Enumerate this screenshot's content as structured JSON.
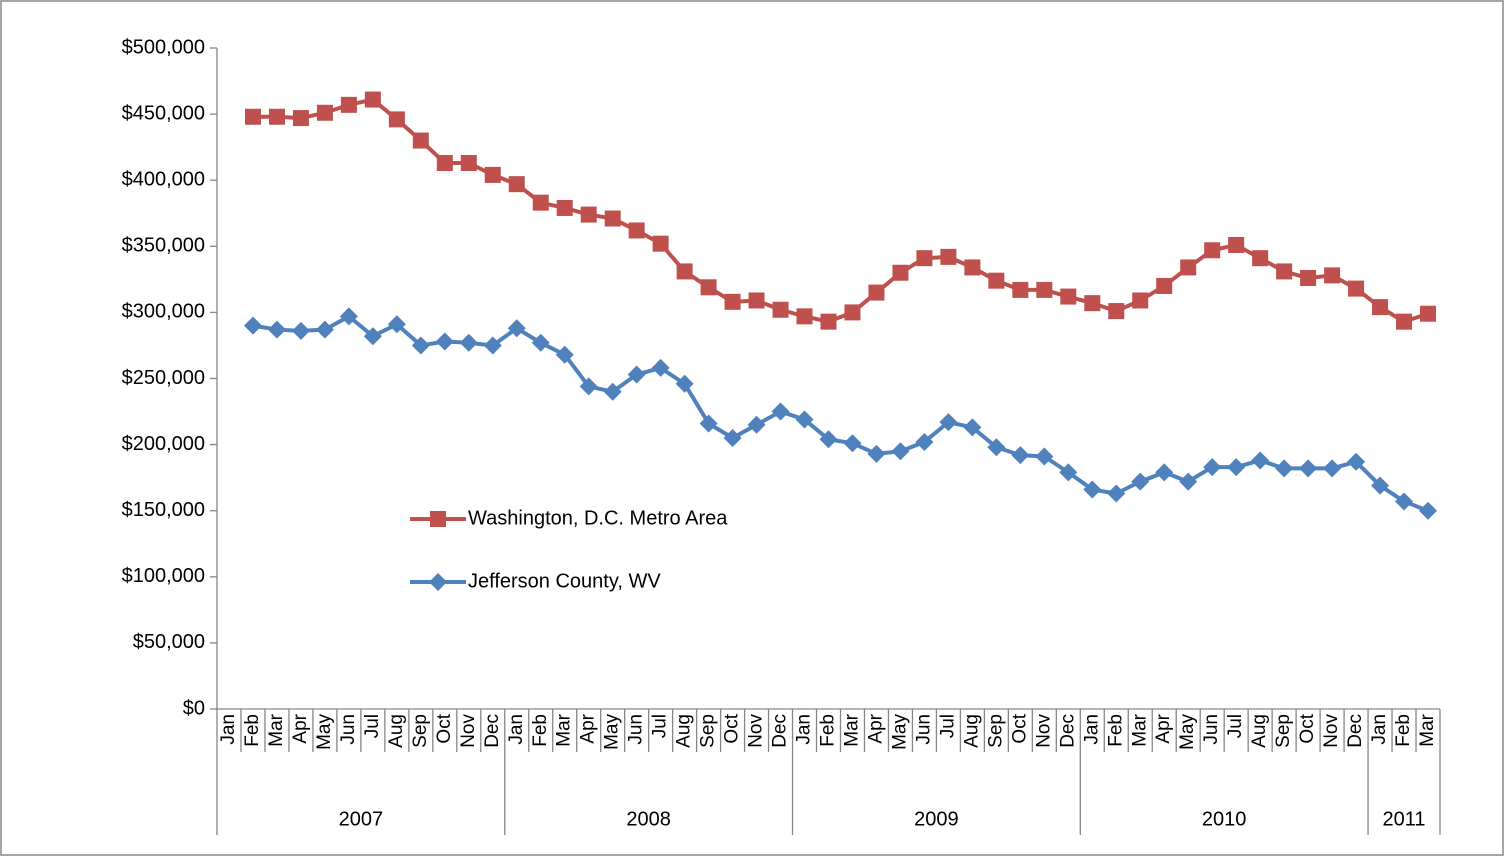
{
  "chart_data": {
    "type": "line",
    "categories": [
      "Jan",
      "Feb",
      "Mar",
      "Apr",
      "May",
      "Jun",
      "Jul",
      "Aug",
      "Sep",
      "Oct",
      "Nov",
      "Dec",
      "Jan",
      "Feb",
      "Mar",
      "Apr",
      "May",
      "Jun",
      "Jul",
      "Aug",
      "Sep",
      "Oct",
      "Nov",
      "Dec",
      "Jan",
      "Feb",
      "Mar",
      "Apr",
      "May",
      "Jun",
      "Jul",
      "Aug",
      "Sep",
      "Oct",
      "Nov",
      "Dec",
      "Jan",
      "Feb",
      "Mar",
      "Apr",
      "May",
      "Jun",
      "Jul",
      "Aug",
      "Sep",
      "Oct",
      "Nov",
      "Dec",
      "Jan",
      "Feb",
      "Mar"
    ],
    "category_groups": [
      "2007",
      null,
      null,
      null,
      null,
      null,
      null,
      null,
      null,
      null,
      null,
      null,
      "2008",
      null,
      null,
      null,
      null,
      null,
      null,
      null,
      null,
      null,
      null,
      null,
      "2009",
      null,
      null,
      null,
      null,
      null,
      null,
      null,
      null,
      null,
      null,
      null,
      "2010",
      null,
      null,
      null,
      null,
      null,
      null,
      null,
      null,
      null,
      null,
      null,
      "2011",
      null,
      null
    ],
    "series": [
      {
        "name": "Washington, D.C. Metro Area",
        "color": "#c0504d",
        "marker": "square",
        "values": [
          null,
          448000,
          448000,
          447000,
          451000,
          457000,
          461000,
          446000,
          430000,
          413000,
          413000,
          404000,
          397000,
          383000,
          379000,
          374000,
          371000,
          362000,
          352000,
          331000,
          319000,
          308000,
          309000,
          302000,
          297000,
          293000,
          300000,
          315000,
          330000,
          341000,
          342000,
          334000,
          324000,
          317000,
          317000,
          312000,
          307000,
          301000,
          309000,
          320000,
          334000,
          347000,
          351000,
          341000,
          331000,
          326000,
          328000,
          318000,
          304000,
          293000,
          299000
        ]
      },
      {
        "name": "Jefferson County, WV",
        "color": "#4f81bd",
        "marker": "diamond",
        "values": [
          null,
          290000,
          287000,
          286000,
          287000,
          297000,
          282000,
          291000,
          275000,
          278000,
          277000,
          275000,
          288000,
          277000,
          268000,
          244000,
          240000,
          253000,
          258000,
          246000,
          216000,
          205000,
          215000,
          225000,
          219000,
          204000,
          201000,
          193000,
          195000,
          202000,
          217000,
          213000,
          198000,
          192000,
          191000,
          179000,
          166000,
          163000,
          172000,
          179000,
          172000,
          183000,
          183000,
          188000,
          182000,
          182000,
          182000,
          187000,
          169000,
          157000,
          150000
        ]
      }
    ],
    "ylim": [
      0,
      500000
    ],
    "yticks": [
      {
        "value": 0,
        "label": "$0"
      },
      {
        "value": 50000,
        "label": "$50,000"
      },
      {
        "value": 100000,
        "label": "$100,000"
      },
      {
        "value": 150000,
        "label": "$150,000"
      },
      {
        "value": 200000,
        "label": "$200,000"
      },
      {
        "value": 250000,
        "label": "$250,000"
      },
      {
        "value": 300000,
        "label": "$300,000"
      },
      {
        "value": 350000,
        "label": "$350,000"
      },
      {
        "value": 400000,
        "label": "$400,000"
      },
      {
        "value": 450000,
        "label": "$450,000"
      },
      {
        "value": 500000,
        "label": "$500,000"
      }
    ],
    "grid": false,
    "legend": "left"
  }
}
